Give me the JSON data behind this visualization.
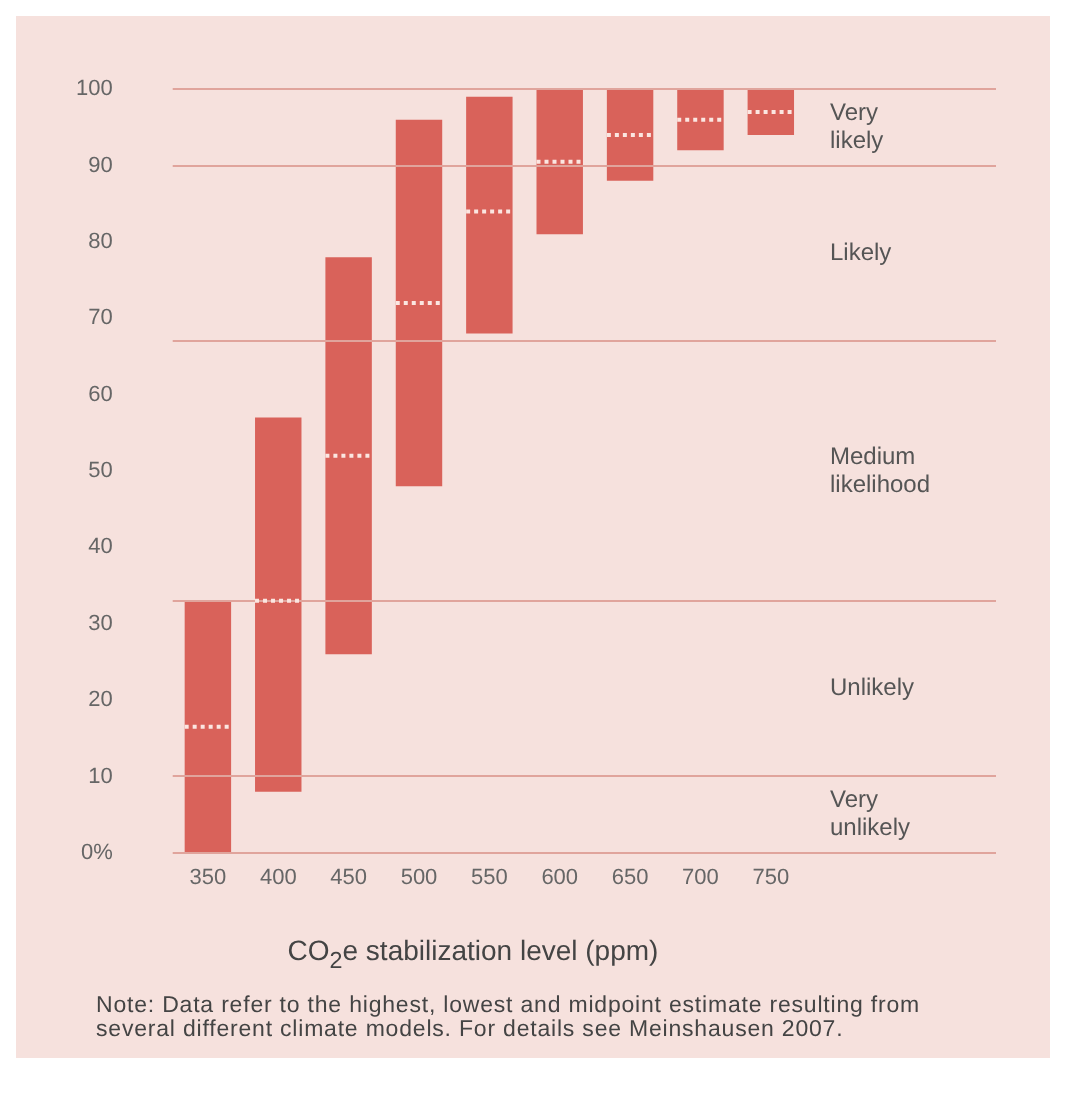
{
  "chart_data": {
    "type": "box",
    "xlabel": "CO$_{2}$e stabilization level (ppm)",
    "categories": [
      "350",
      "400",
      "450",
      "500",
      "550",
      "600",
      "650",
      "700",
      "750"
    ],
    "color": "#d9625a",
    "boxes": [
      {
        "low": 0,
        "q1": 0,
        "median": 16.5,
        "q3": 33,
        "high": 33
      },
      {
        "low": 8,
        "q1": 8,
        "median": 33,
        "q3": 57,
        "high": 57
      },
      {
        "low": 26,
        "q1": 26,
        "median": 52,
        "q3": 78,
        "high": 78
      },
      {
        "low": 48,
        "q1": 48,
        "median": 72,
        "q3": 96,
        "high": 96
      },
      {
        "low": 68,
        "q1": 68,
        "median": 84,
        "q3": 99,
        "high": 99
      },
      {
        "low": 81,
        "q1": 81,
        "median": 90.5,
        "q3": 100,
        "high": 100
      },
      {
        "low": 88,
        "q1": 88,
        "median": 94,
        "q3": 100,
        "high": 100
      },
      {
        "low": 92,
        "q1": 92,
        "median": 96,
        "q3": 100,
        "high": 100
      },
      {
        "low": 94,
        "q1": 94,
        "median": 97,
        "q3": 100,
        "high": 100
      }
    ],
    "ylim": [
      0,
      100
    ],
    "yticks": [
      {
        "value": 0,
        "label": "0%"
      },
      10,
      20,
      30,
      40,
      50,
      60,
      70,
      80,
      90,
      100
    ],
    "grid": false,
    "legend": false,
    "ref_lines": [
      {
        "axis": "y",
        "value": 0,
        "color": "#e0a49c"
      },
      {
        "axis": "y",
        "value": 10,
        "color": "#e0a49c"
      },
      {
        "axis": "y",
        "value": 33,
        "color": "#e0a49c"
      },
      {
        "axis": "y",
        "value": 67,
        "color": "#e0a49c"
      },
      {
        "axis": "y",
        "value": 90,
        "color": "#e0a49c"
      },
      {
        "axis": "y",
        "value": 100,
        "color": "#e0a49c"
      }
    ],
    "annotations": [
      "Very likely",
      "Likely",
      "Medium likelihood",
      "Unlikely",
      "Very unlikely",
      "Note: Data refer to the highest, lowest and midpoint estimate resulting from several different climate models. For details see Meinshausen 2007."
    ]
  }
}
